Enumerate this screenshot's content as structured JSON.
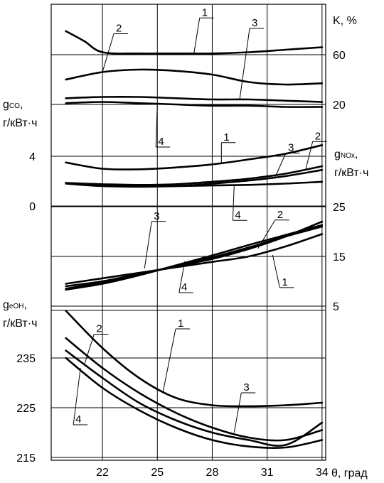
{
  "chart_data": {
    "type": "line",
    "x_axis": {
      "label": "θ, град",
      "ticks": [
        22,
        25,
        28,
        31,
        34
      ],
      "range": [
        19.2,
        34.2
      ]
    },
    "panels": [
      {
        "id": "K",
        "y_label": "K, %",
        "y_ticks": [
          {
            "value": 60,
            "label": "60"
          },
          {
            "value": 20,
            "label": "20"
          }
        ],
        "series": [
          {
            "name": "1",
            "x": [
              20,
              21,
              22,
              24,
              26,
              28,
              30,
              32,
              34
            ],
            "y": [
              79,
              71,
              62,
              61,
              61,
              61,
              62,
              64,
              66
            ]
          },
          {
            "name": "2",
            "x": [
              20,
              22,
              24,
              26,
              28,
              30,
              32,
              34
            ],
            "y": [
              40,
              46,
              48,
              47,
              44,
              38,
              36,
              37
            ]
          },
          {
            "name": "3",
            "x": [
              20,
              22,
              24,
              26,
              28,
              30,
              32,
              34
            ],
            "y": [
              25,
              26,
              26,
              25,
              24,
              24,
              23,
              22
            ]
          },
          {
            "name": "4",
            "x": [
              20,
              22,
              24,
              26,
              28,
              30,
              32,
              34
            ],
            "y": [
              21,
              22,
              21,
              20,
              19,
              19,
              18,
              18
            ]
          }
        ]
      },
      {
        "id": "gCO",
        "y_label_main": "g",
        "y_label_sub": "CO",
        "y_label_unit": "г/кВт·ч",
        "y_ticks": [
          {
            "value": 4,
            "label": "4"
          },
          {
            "value": 0,
            "label": "0"
          }
        ],
        "series": [
          {
            "name": "1",
            "x": [
              20,
              22,
              24,
              26,
              28,
              30,
              32,
              34
            ],
            "y": [
              3.5,
              3.0,
              2.95,
              3.1,
              3.35,
              3.75,
              4.2,
              4.9
            ]
          },
          {
            "name": "2",
            "x": [
              20,
              22,
              24,
              26,
              28,
              30,
              32,
              34
            ],
            "y": [
              1.85,
              1.75,
              1.7,
              1.75,
              1.95,
              2.2,
              2.6,
              3.2
            ]
          },
          {
            "name": "3",
            "x": [
              20,
              22,
              24,
              26,
              28,
              30,
              32,
              34
            ],
            "y": [
              1.8,
              1.6,
              1.55,
              1.6,
              1.8,
              2.05,
              2.4,
              2.9
            ]
          },
          {
            "name": "4",
            "x": [
              20,
              22,
              24,
              26,
              28,
              30,
              32,
              34
            ],
            "y": [
              1.85,
              1.7,
              1.6,
              1.6,
              1.65,
              1.7,
              1.8,
              1.95
            ]
          }
        ]
      },
      {
        "id": "gNOx",
        "y_label_main": "g",
        "y_label_sub": "NOx",
        "y_label_unit": "г/кВт·ч",
        "y_ticks": [
          {
            "value": 25,
            "label": "25"
          },
          {
            "value": 15,
            "label": "15"
          },
          {
            "value": 5,
            "label": "5"
          }
        ],
        "series": [
          {
            "name": "1",
            "x": [
              20,
              22,
              24,
              26,
              28,
              30,
              32,
              34
            ],
            "y": [
              9.5,
              10.6,
              11.7,
              12.8,
              13.9,
              15.0,
              17.0,
              19.5
            ]
          },
          {
            "name": "2",
            "x": [
              20,
              22,
              24,
              26,
              28,
              30,
              32,
              34
            ],
            "y": [
              9.0,
              10.0,
              11.5,
              13.0,
              14.5,
              16.5,
              19.0,
              22.0
            ]
          },
          {
            "name": "3",
            "x": [
              20,
              22,
              24,
              26,
              28,
              30,
              32,
              34
            ],
            "y": [
              8.3,
              9.5,
              11.2,
              13.2,
              15.2,
              17.3,
              19.3,
              21.3
            ]
          },
          {
            "name": "4",
            "x": [
              20,
              22,
              24,
              26,
              28,
              30,
              32,
              34
            ],
            "y": [
              8.5,
              9.8,
              11.4,
              13.0,
              14.8,
              16.8,
              19.0,
              21.0
            ]
          }
        ]
      },
      {
        "id": "geOH",
        "y_label_main": "g",
        "y_label_sub": "eOH",
        "y_label_unit": "г/кВт·ч",
        "y_ticks": [
          {
            "value": 235,
            "label": "235"
          },
          {
            "value": 225,
            "label": "225"
          },
          {
            "value": 215,
            "label": "215"
          }
        ],
        "series": [
          {
            "name": "1",
            "x": [
              20,
              22,
              24,
              26,
              28,
              30,
              32,
              34
            ],
            "y": [
              244.5,
              237,
              231,
              227,
              225.5,
              225.3,
              225.5,
              226
            ]
          },
          {
            "name": "2",
            "x": [
              20,
              22,
              24,
              26,
              28,
              30,
              32,
              34
            ],
            "y": [
              239,
              233,
              228,
              224,
              221,
              219,
              218.5,
              220.5
            ]
          },
          {
            "name": "3",
            "x": [
              20,
              22,
              24,
              26,
              28,
              30,
              32,
              34
            ],
            "y": [
              236.5,
              231,
              226,
              222.5,
              220,
              218.5,
              217.5,
              222
            ]
          },
          {
            "name": "4",
            "x": [
              20,
              22,
              24,
              26,
              28,
              30,
              32,
              34
            ],
            "y": [
              235,
              229,
              224.5,
              221,
              218.5,
              217.2,
              217,
              218.5
            ]
          }
        ]
      }
    ],
    "grid": true,
    "callouts": [
      {
        "panel": "K",
        "label": "1",
        "at": [
          27,
          61
        ]
      },
      {
        "panel": "K",
        "label": "2",
        "at": [
          22,
          46
        ]
      },
      {
        "panel": "K",
        "label": "3",
        "at": [
          29.5,
          24
        ]
      },
      {
        "panel": "K",
        "label": "4",
        "at": [
          25,
          20
        ]
      },
      {
        "panel": "gCO",
        "label": "1",
        "at": [
          28.5,
          3.5
        ]
      },
      {
        "panel": "gCO",
        "label": "2",
        "at": [
          33.1,
          2.9
        ]
      },
      {
        "panel": "gCO",
        "label": "3",
        "at": [
          31.4,
          2.2
        ]
      },
      {
        "panel": "gCO",
        "label": "4",
        "at": [
          29.2,
          1.7
        ]
      },
      {
        "panel": "gNOx",
        "label": "2",
        "at": [
          30.5,
          16.6
        ]
      },
      {
        "panel": "gNOx",
        "label": "3",
        "at": [
          24.3,
          12.6
        ]
      },
      {
        "panel": "gNOx",
        "label": "4",
        "at": [
          26.5,
          14.0
        ]
      },
      {
        "panel": "gNOx",
        "label": "1",
        "at": [
          31.3,
          15.3
        ]
      },
      {
        "panel": "geOH",
        "label": "1",
        "at": [
          25.3,
          228
        ]
      },
      {
        "panel": "geOH",
        "label": "2",
        "at": [
          21.0,
          233.5
        ]
      },
      {
        "panel": "geOH",
        "label": "3",
        "at": [
          29.2,
          220.0
        ]
      },
      {
        "panel": "geOH",
        "label": "4",
        "at": [
          20.8,
          233.0
        ]
      }
    ]
  }
}
